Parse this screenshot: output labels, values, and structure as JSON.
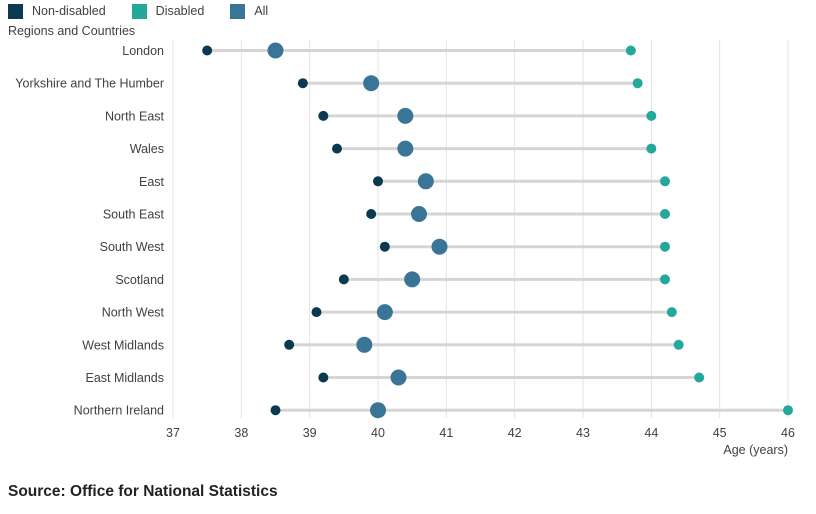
{
  "legend": [
    {
      "label": "Non-disabled",
      "color": "#0b3a50"
    },
    {
      "label": "Disabled",
      "color": "#23a99b"
    },
    {
      "label": "All",
      "color": "#3a7598"
    }
  ],
  "source": "Source: Office for National Statistics",
  "chart_data": {
    "type": "dumbbell",
    "title": "",
    "ylabel": "Regions and Countries",
    "xlabel": "Age (years)",
    "xlim": [
      37,
      46
    ],
    "xticks": [
      37,
      38,
      39,
      40,
      41,
      42,
      43,
      44,
      45,
      46
    ],
    "grid": true,
    "legend_position": "top-left",
    "categories": [
      "London",
      "Yorkshire and The Humber",
      "North East",
      "Wales",
      "East",
      "South East",
      "South West",
      "Scotland",
      "North West",
      "West Midlands",
      "East Midlands",
      "Northern Ireland"
    ],
    "series": [
      {
        "name": "Non-disabled",
        "color": "#0b3a50",
        "values": [
          37.5,
          38.9,
          39.2,
          39.4,
          40.0,
          39.9,
          40.1,
          39.5,
          39.1,
          38.7,
          39.2,
          38.5
        ]
      },
      {
        "name": "Disabled",
        "color": "#23a99b",
        "values": [
          43.7,
          43.8,
          44.0,
          44.0,
          44.2,
          44.2,
          44.2,
          44.2,
          44.3,
          44.4,
          44.7,
          46.0
        ]
      },
      {
        "name": "All",
        "color": "#3a7598",
        "values": [
          38.5,
          39.9,
          40.4,
          40.4,
          40.7,
          40.6,
          40.9,
          40.5,
          40.1,
          39.8,
          40.3,
          40.0
        ]
      }
    ]
  }
}
